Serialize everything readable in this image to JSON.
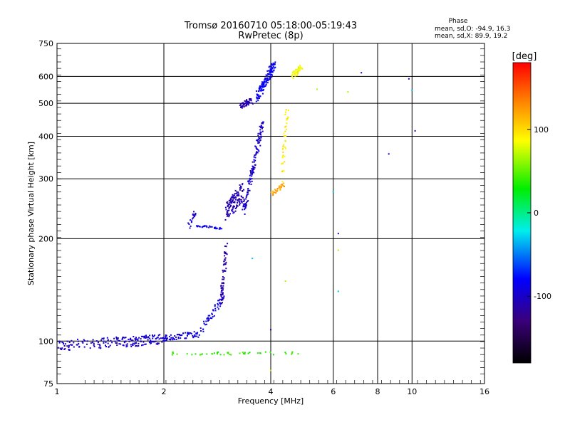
{
  "header": {
    "title_line1": "Tromsø 20160710 05:18:00-05:19:43",
    "title_line2": "RwPretec (8p)",
    "phase_heading": "Phase",
    "phase_o": "mean, sd,O: -94.9, 16.3",
    "phase_x": "mean, sd,X:  89.9, 19.2"
  },
  "chart_data": {
    "type": "scatter",
    "title": "Tromsø 20160710 05:18:00-05:19:43",
    "subtitle": "RwPretec (8p)",
    "xlabel": "Frequency [MHz]",
    "ylabel": "Stationary phase Virtual Height [km]",
    "x_scale": "log",
    "y_scale": "log",
    "xlim": [
      1,
      16
    ],
    "ylim": [
      75,
      750
    ],
    "x_ticks": [
      1,
      2,
      4,
      6,
      8,
      10,
      16
    ],
    "x_tick_labels": [
      "1",
      "2",
      "4",
      "6",
      "8",
      "10",
      "16"
    ],
    "y_ticks": [
      75,
      100,
      200,
      300,
      400,
      500,
      600,
      750
    ],
    "y_tick_labels": [
      "75",
      "100",
      "200",
      "300",
      "400",
      "500",
      "600",
      "750"
    ],
    "grid": true,
    "colorbar": {
      "label": "[deg]",
      "range": [
        -180,
        180
      ],
      "ticks": [
        100,
        0,
        -100
      ],
      "tick_labels": [
        "100",
        "0",
        "-100"
      ]
    },
    "series": [
      {
        "mode": "band",
        "phase": -100,
        "count": 190,
        "freq": [
          1.0,
          2.0
        ],
        "height": [
          97,
          101
        ],
        "spread": 0.07
      },
      {
        "mode": "band",
        "phase": -95,
        "count": 70,
        "freq": [
          2.0,
          2.5
        ],
        "height": [
          102,
          105
        ],
        "spread": 0.04
      },
      {
        "mode": "band",
        "phase": -90,
        "count": 55,
        "freq": [
          2.5,
          2.95
        ],
        "height": [
          105,
          135
        ],
        "spread": 0.05
      },
      {
        "mode": "band",
        "phase": -115,
        "count": 60,
        "freq": [
          2.9,
          3.0
        ],
        "height": [
          130,
          190
        ],
        "spread": 0.07
      },
      {
        "mode": "band",
        "phase": -90,
        "count": 30,
        "freq": [
          2.45,
          2.9
        ],
        "height": [
          218,
          215
        ],
        "spread": 0.015
      },
      {
        "mode": "band",
        "phase": -100,
        "count": 18,
        "freq": [
          2.35,
          2.45
        ],
        "height": [
          215,
          240
        ],
        "spread": 0.04
      },
      {
        "mode": "band",
        "phase": -110,
        "count": 120,
        "freq": [
          3.0,
          3.35
        ],
        "height": [
          240,
          275
        ],
        "spread": 0.13
      },
      {
        "mode": "band",
        "phase": -100,
        "count": 130,
        "freq": [
          3.35,
          3.8
        ],
        "height": [
          240,
          440
        ],
        "spread": 0.08
      },
      {
        "mode": "band",
        "phase": -110,
        "count": 50,
        "freq": [
          3.3,
          3.55
        ],
        "height": [
          490,
          510
        ],
        "spread": 0.04
      },
      {
        "mode": "band",
        "phase": -85,
        "count": 130,
        "freq": [
          3.65,
          4.1
        ],
        "height": [
          520,
          650
        ],
        "spread": 0.07
      },
      {
        "mode": "band",
        "phase": 95,
        "count": 40,
        "freq": [
          4.3,
          4.45
        ],
        "height": [
          300,
          480
        ],
        "spread": 0.05
      },
      {
        "mode": "band",
        "phase": 120,
        "count": 30,
        "freq": [
          4.0,
          4.4
        ],
        "height": [
          270,
          290
        ],
        "spread": 0.03
      },
      {
        "mode": "band",
        "phase": 90,
        "count": 45,
        "freq": [
          4.6,
          4.9
        ],
        "height": [
          600,
          640
        ],
        "spread": 0.04
      },
      {
        "mode": "band",
        "phase": 40,
        "count": 45,
        "freq": [
          2.1,
          4.8
        ],
        "height": [
          92,
          92
        ],
        "spread": 0.02
      },
      {
        "mode": "points",
        "phase": -100,
        "x": [
          4.0,
          7.2,
          10.2,
          8.6,
          6.2,
          9.8
        ],
        "y": [
          108,
          615,
          415,
          355,
          207,
          590
        ]
      },
      {
        "mode": "points",
        "phase": 70,
        "x": [
          4.0,
          5.4,
          6.6,
          6.2,
          4.4
        ],
        "y": [
          82,
          550,
          540,
          185,
          150
        ]
      },
      {
        "mode": "points",
        "phase": -30,
        "x": [
          3.55,
          6.0,
          6.2,
          10.0
        ],
        "y": [
          175,
          275,
          140,
          545
        ]
      }
    ]
  }
}
